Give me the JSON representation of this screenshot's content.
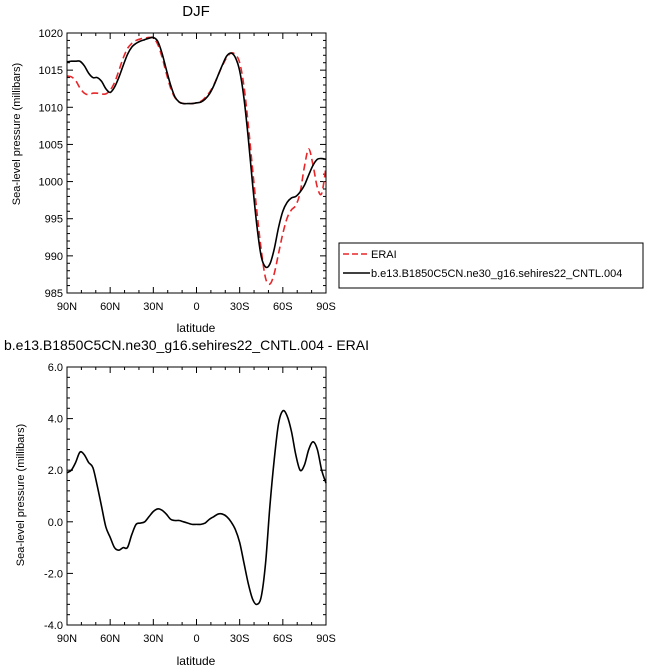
{
  "chart_data": [
    {
      "type": "line",
      "title": "DJF",
      "xlabel": "latitude",
      "ylabel": "Sea-level pressure (millibars)",
      "xlim": [
        90,
        -90
      ],
      "ylim": [
        985,
        1020
      ],
      "xticks": [
        90,
        60,
        30,
        0,
        -30,
        -60,
        -90
      ],
      "xtick_labels": [
        "90N",
        "60N",
        "30N",
        "0",
        "30S",
        "60S",
        "90S"
      ],
      "yticks": [
        985,
        990,
        995,
        1000,
        1005,
        1010,
        1015,
        1020
      ],
      "ytick_labels": [
        "985",
        "990",
        "995",
        "1000",
        "1005",
        "1010",
        "1015",
        "1020"
      ],
      "grid": false,
      "legend": "right",
      "series": [
        {
          "name": "ERAI",
          "color": "#e8262a",
          "dash": "dashed",
          "x": [
            90,
            87,
            84,
            81,
            78,
            75,
            72,
            69,
            66,
            63,
            60,
            57,
            54,
            51,
            48,
            45,
            42,
            39,
            36,
            33,
            30,
            27,
            24,
            21,
            18,
            15,
            12,
            9,
            6,
            3,
            0,
            -3,
            -6,
            -9,
            -12,
            -15,
            -18,
            -21,
            -24,
            -27,
            -30,
            -33,
            -36,
            -39,
            -42,
            -45,
            -48,
            -51,
            -54,
            -57,
            -60,
            -63,
            -66,
            -69,
            -72,
            -75,
            -78,
            -81,
            -84,
            -87,
            -90
          ],
          "values": [
            1014.2,
            1014.1,
            1013.6,
            1012.6,
            1011.9,
            1011.7,
            1011.9,
            1011.9,
            1011.8,
            1011.8,
            1012.3,
            1013.3,
            1014.9,
            1016.6,
            1017.9,
            1018.6,
            1019.0,
            1019.2,
            1019.3,
            1019.4,
            1019.3,
            1018.5,
            1016.8,
            1014.6,
            1012.6,
            1011.3,
            1010.7,
            1010.5,
            1010.5,
            1010.5,
            1010.6,
            1010.8,
            1011.3,
            1012.0,
            1013.0,
            1014.3,
            1015.6,
            1016.7,
            1017.3,
            1017.1,
            1016.0,
            1012.8,
            1007.6,
            1001.6,
            995.9,
            990.8,
            987.0,
            986.2,
            987.6,
            990.3,
            993.0,
            995.1,
            996.2,
            996.8,
            998.5,
            1002.0,
            1004.4,
            1002.2,
            999.2,
            998.4,
            1002.0
          ]
        },
        {
          "name": "b.e13.B1850C5CN.ne30_g16.sehires22_CNTL.004",
          "color": "#000000",
          "dash": "solid",
          "x": [
            90,
            87,
            84,
            81,
            78,
            75,
            72,
            69,
            66,
            63,
            60,
            57,
            54,
            51,
            48,
            45,
            42,
            39,
            36,
            33,
            30,
            27,
            24,
            21,
            18,
            15,
            12,
            9,
            6,
            3,
            0,
            -3,
            -6,
            -9,
            -12,
            -15,
            -18,
            -21,
            -24,
            -27,
            -30,
            -33,
            -36,
            -39,
            -42,
            -45,
            -48,
            -51,
            -54,
            -57,
            -60,
            -63,
            -66,
            -69,
            -72,
            -75,
            -78,
            -81,
            -84,
            -87,
            -90
          ],
          "values": [
            1016.1,
            1016.2,
            1016.2,
            1016.2,
            1015.6,
            1014.6,
            1014.0,
            1014.0,
            1013.5,
            1012.5,
            1012.0,
            1012.7,
            1014.0,
            1015.6,
            1017.1,
            1018.1,
            1018.6,
            1018.9,
            1019.1,
            1019.3,
            1019.4,
            1018.9,
            1017.3,
            1015.1,
            1013.0,
            1011.4,
            1010.7,
            1010.5,
            1010.5,
            1010.5,
            1010.6,
            1010.7,
            1011.1,
            1011.8,
            1012.9,
            1014.3,
            1015.7,
            1016.9,
            1017.3,
            1016.7,
            1014.9,
            1011.2,
            1005.8,
            999.6,
            994.0,
            989.9,
            988.5,
            988.9,
            990.9,
            993.8,
            996.0,
            997.2,
            997.8,
            998.0,
            998.6,
            999.5,
            1000.9,
            1002.2,
            1003.0,
            1003.1,
            1003.0
          ]
        }
      ]
    },
    {
      "type": "line",
      "title": "b.e13.B1850C5CN.ne30_g16.sehires22_CNTL.004 - ERAI",
      "xlabel": "latitude",
      "ylabel": "Sea-level pressure (millibars)",
      "xlim": [
        90,
        -90
      ],
      "ylim": [
        -4.0,
        6.0
      ],
      "xticks": [
        90,
        60,
        30,
        0,
        -30,
        -60,
        -90
      ],
      "xtick_labels": [
        "90N",
        "60N",
        "30N",
        "0",
        "30S",
        "60S",
        "90S"
      ],
      "yticks": [
        -4.0,
        -2.0,
        0.0,
        2.0,
        4.0,
        6.0
      ],
      "ytick_labels": [
        "-4.0",
        "-2.0",
        "0.0",
        "2.0",
        "4.0",
        "6.0"
      ],
      "grid": false,
      "series": [
        {
          "color": "#000000",
          "dash": "solid",
          "x": [
            90,
            87,
            84,
            81,
            78,
            75,
            72,
            69,
            66,
            63,
            60,
            57,
            54,
            51,
            48,
            45,
            42,
            39,
            36,
            33,
            30,
            27,
            24,
            21,
            18,
            15,
            12,
            9,
            6,
            3,
            0,
            -3,
            -6,
            -9,
            -12,
            -15,
            -18,
            -21,
            -24,
            -27,
            -30,
            -33,
            -36,
            -39,
            -42,
            -45,
            -48,
            -51,
            -54,
            -57,
            -60,
            -63,
            -66,
            -69,
            -72,
            -75,
            -78,
            -81,
            -84,
            -87,
            -90
          ],
          "values": [
            1.9,
            2.0,
            2.3,
            2.7,
            2.6,
            2.3,
            2.1,
            1.4,
            0.6,
            -0.2,
            -0.6,
            -1.0,
            -1.1,
            -1.0,
            -1.0,
            -0.5,
            -0.1,
            -0.05,
            0.0,
            0.2,
            0.4,
            0.5,
            0.45,
            0.3,
            0.1,
            0.05,
            0.05,
            0.0,
            -0.05,
            -0.1,
            -0.1,
            -0.1,
            -0.05,
            0.1,
            0.2,
            0.3,
            0.3,
            0.2,
            0.0,
            -0.3,
            -0.8,
            -1.6,
            -2.4,
            -3.0,
            -3.2,
            -2.9,
            -1.6,
            0.6,
            2.4,
            3.8,
            4.3,
            4.1,
            3.5,
            2.6,
            2.0,
            2.2,
            2.8,
            3.1,
            2.8,
            2.0,
            1.5
          ]
        }
      ]
    }
  ]
}
